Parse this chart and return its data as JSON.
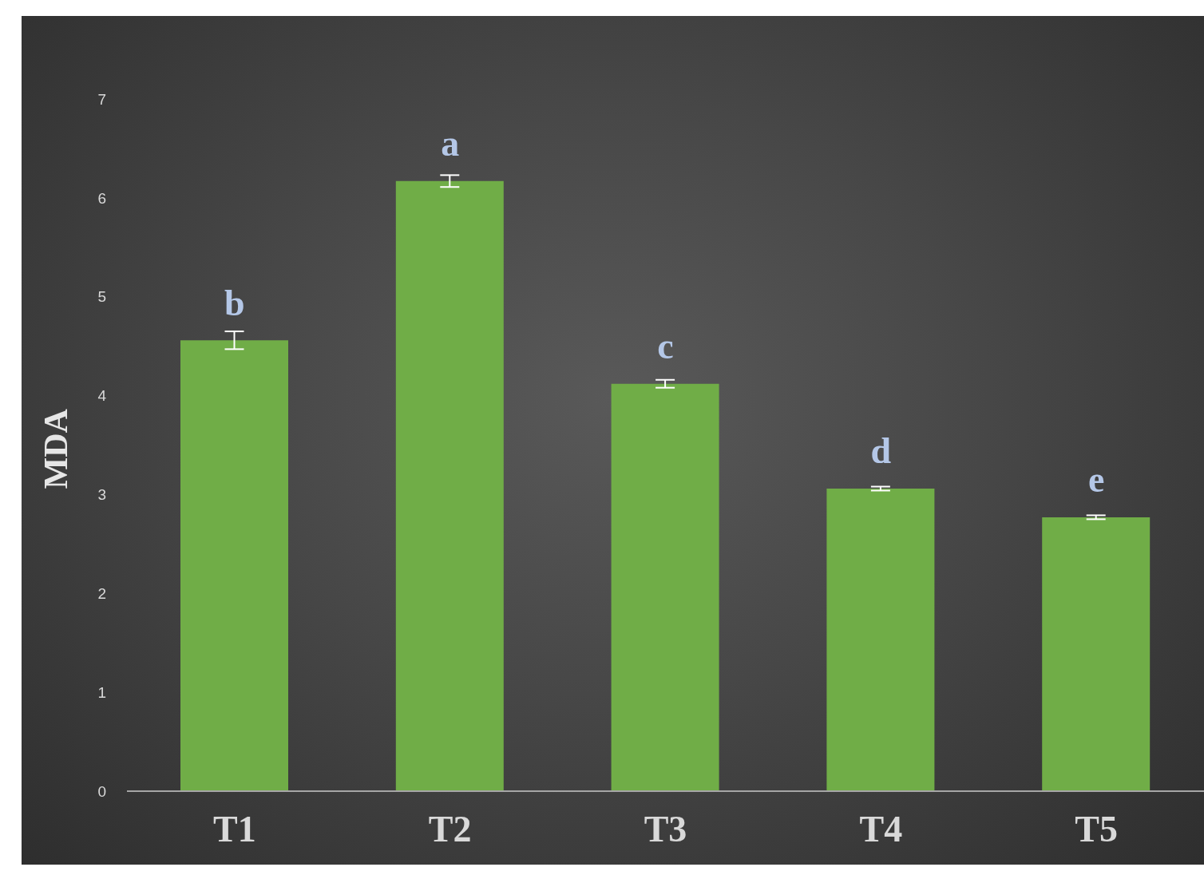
{
  "chart_data": {
    "type": "bar",
    "ylabel": "MDA",
    "categories": [
      "T1",
      "T2",
      "T3",
      "T4",
      "T5"
    ],
    "values": [
      4.56,
      6.17,
      4.12,
      3.06,
      2.77
    ],
    "errors": [
      0.09,
      0.06,
      0.04,
      0.02,
      0.02
    ],
    "color": "#70ad47",
    "ylim": [
      0,
      7
    ],
    "yticks": [
      0,
      1,
      2,
      3,
      4,
      5,
      6,
      7
    ],
    "grid": false,
    "legend": false,
    "annotations": [
      {
        "text": "b",
        "x": "T1",
        "y": 4.56
      },
      {
        "text": "a",
        "x": "T2",
        "y": 6.17
      },
      {
        "text": "c",
        "x": "T3",
        "y": 4.12
      },
      {
        "text": "d",
        "x": "T4",
        "y": 3.06
      },
      {
        "text": "e",
        "x": "T5",
        "y": 2.77
      }
    ]
  }
}
